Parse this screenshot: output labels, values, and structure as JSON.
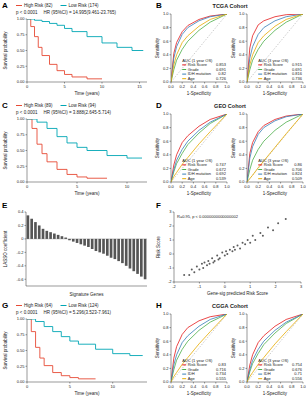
{
  "chart_data": [
    {
      "panel": "A",
      "type": "km",
      "xlabel": "Time (years)",
      "ylabel": "Survival probability",
      "xlim": [
        0,
        16
      ],
      "xticks": [
        0,
        5,
        10,
        15
      ],
      "ylim": [
        0,
        1
      ],
      "yticks": [
        {
          "value": 0,
          "label": "0.00"
        },
        0.25,
        {
          "value": 0.5,
          "label": "0.50"
        },
        0.75,
        {
          "value": 1,
          "label": "1.00"
        }
      ],
      "annotations": [
        "p < 0.0001",
        "HR (95%CI) = 14.995(9.461-23.765)"
      ],
      "series": [
        {
          "name": "High Risk (82)",
          "color": "#e64b35",
          "x": [
            0,
            0.5,
            1,
            1.5,
            2,
            3,
            4,
            5,
            6,
            8,
            10
          ],
          "values": [
            1,
            0.88,
            0.72,
            0.55,
            0.42,
            0.28,
            0.18,
            0.12,
            0.08,
            0.05,
            0.05
          ]
        },
        {
          "name": "Low Risk (174)",
          "color": "#00a6b4",
          "x": [
            0,
            1,
            2,
            3,
            4,
            5,
            6,
            8,
            10,
            12,
            14,
            15.5
          ],
          "values": [
            1,
            0.98,
            0.96,
            0.93,
            0.9,
            0.85,
            0.8,
            0.72,
            0.62,
            0.55,
            0.5,
            0.5
          ]
        }
      ]
    },
    {
      "panel": "B",
      "type": "roc",
      "title": "TCGA Cohort",
      "xlabel": "1-Specificity",
      "ylabel": "Sensitivity",
      "xlim": [
        0,
        1
      ],
      "ylim": [
        0,
        1
      ],
      "xticks": [
        {
          "value": 0,
          "label": "0.0"
        },
        0.2,
        0.4,
        0.6,
        0.8,
        {
          "value": 1,
          "label": "1.0"
        }
      ],
      "yticks": [
        {
          "value": 0,
          "label": "0.0"
        },
        0.2,
        0.4,
        0.6,
        0.8,
        {
          "value": 1,
          "label": "1.0"
        }
      ],
      "subplots": [
        {
          "legend_title": "AUC (1 year OS)",
          "x": [
            0,
            0.05,
            0.1,
            0.2,
            0.3,
            0.5,
            0.7,
            1
          ],
          "series": [
            {
              "name": "Risk Score",
              "auc": 0.853,
              "color": "#e41a1c",
              "values": [
                0,
                0.42,
                0.58,
                0.74,
                0.83,
                0.92,
                0.97,
                1
              ]
            },
            {
              "name": "Grade",
              "auc": 0.691,
              "color": "#4daf4a",
              "values": [
                0,
                0.18,
                0.32,
                0.48,
                0.6,
                0.76,
                0.88,
                1
              ]
            },
            {
              "name": "IDH mutation",
              "auc": 0.82,
              "color": "#377eb8",
              "values": [
                0,
                0.35,
                0.52,
                0.7,
                0.8,
                0.9,
                0.96,
                1
              ]
            },
            {
              "name": "Age",
              "auc": 0.726,
              "color": "#e6ab02",
              "values": [
                0,
                0.25,
                0.4,
                0.58,
                0.68,
                0.82,
                0.92,
                1
              ]
            }
          ]
        },
        {
          "legend_title": "AUC (3 year OS)",
          "x": [
            0,
            0.05,
            0.1,
            0.2,
            0.3,
            0.5,
            0.7,
            1
          ],
          "series": [
            {
              "name": "Risk Score",
              "auc": 0.915,
              "color": "#e41a1c",
              "values": [
                0,
                0.5,
                0.68,
                0.84,
                0.9,
                0.96,
                0.99,
                1
              ]
            },
            {
              "name": "Grade",
              "auc": 0.691,
              "color": "#4daf4a",
              "values": [
                0,
                0.18,
                0.32,
                0.48,
                0.6,
                0.76,
                0.88,
                1
              ]
            },
            {
              "name": "IDH mutation",
              "auc": 0.816,
              "color": "#377eb8",
              "values": [
                0,
                0.35,
                0.52,
                0.7,
                0.8,
                0.9,
                0.96,
                1
              ]
            },
            {
              "name": "Age",
              "auc": 0.736,
              "color": "#e6ab02",
              "values": [
                0,
                0.25,
                0.4,
                0.58,
                0.68,
                0.82,
                0.92,
                1
              ]
            }
          ]
        }
      ]
    },
    {
      "panel": "C",
      "type": "km",
      "xlabel": "Time (years)",
      "ylabel": "Survival probability",
      "xlim": [
        0,
        12
      ],
      "xticks": [
        0,
        5,
        10
      ],
      "ylim": [
        0,
        1
      ],
      "yticks": [
        {
          "value": 0,
          "label": "0.00"
        },
        0.25,
        {
          "value": 0.5,
          "label": "0.50"
        },
        0.75,
        {
          "value": 1,
          "label": "1.00"
        }
      ],
      "annotations": [
        "p < 0.0001",
        "HR (95%CI) = 3.888(2.645-5.714)"
      ],
      "series": [
        {
          "name": "High Risk (89)",
          "color": "#e64b35",
          "x": [
            0,
            0.5,
            1,
            1.5,
            2,
            3,
            4,
            5,
            6,
            8
          ],
          "values": [
            1,
            0.85,
            0.6,
            0.45,
            0.32,
            0.2,
            0.12,
            0.08,
            0.06,
            0.06
          ]
        },
        {
          "name": "Low Risk (94)",
          "color": "#00a6b4",
          "x": [
            0,
            1,
            2,
            3,
            4,
            5,
            6,
            8,
            10,
            11.5
          ],
          "values": [
            1,
            0.95,
            0.85,
            0.72,
            0.62,
            0.55,
            0.5,
            0.42,
            0.38,
            0.38
          ]
        }
      ]
    },
    {
      "panel": "D",
      "type": "roc",
      "title": "GEO Cohort",
      "xlabel": "1-Specificity",
      "ylabel": "Sensitivity",
      "xlim": [
        0,
        1
      ],
      "ylim": [
        0,
        1
      ],
      "xticks": [
        {
          "value": 0,
          "label": "0.0"
        },
        0.2,
        0.4,
        0.6,
        0.8,
        {
          "value": 1,
          "label": "1.0"
        }
      ],
      "yticks": [
        {
          "value": 0,
          "label": "0.0"
        },
        0.2,
        0.4,
        0.6,
        0.8,
        {
          "value": 1,
          "label": "1.0"
        }
      ],
      "subplots": [
        {
          "legend_title": "AUC (1 year OS)",
          "x": [
            0,
            0.05,
            0.1,
            0.2,
            0.3,
            0.5,
            0.7,
            1
          ],
          "series": [
            {
              "name": "Risk Score",
              "auc": 0.747,
              "color": "#e41a1c",
              "values": [
                0,
                0.25,
                0.4,
                0.58,
                0.68,
                0.82,
                0.92,
                1
              ]
            },
            {
              "name": "Grade",
              "auc": 0.672,
              "color": "#4daf4a",
              "values": [
                0,
                0.15,
                0.27,
                0.42,
                0.55,
                0.72,
                0.86,
                1
              ]
            },
            {
              "name": "IDH mutation",
              "auc": 0.692,
              "color": "#377eb8",
              "values": [
                0,
                0.18,
                0.32,
                0.48,
                0.6,
                0.76,
                0.88,
                1
              ]
            },
            {
              "name": "Age",
              "auc": 0.539,
              "color": "#e6ab02",
              "values": [
                0,
                0.08,
                0.14,
                0.26,
                0.36,
                0.56,
                0.74,
                1
              ]
            }
          ]
        },
        {
          "legend_title": "AUC (3 year OS)",
          "x": [
            0,
            0.05,
            0.1,
            0.2,
            0.3,
            0.5,
            0.7,
            1
          ],
          "series": [
            {
              "name": "Risk Score",
              "auc": 0.86,
              "color": "#e41a1c",
              "values": [
                0,
                0.42,
                0.58,
                0.74,
                0.83,
                0.92,
                0.97,
                1
              ]
            },
            {
              "name": "Grade",
              "auc": 0.706,
              "color": "#4daf4a",
              "values": [
                0,
                0.18,
                0.32,
                0.48,
                0.6,
                0.76,
                0.88,
                1
              ]
            },
            {
              "name": "IDH mutation",
              "auc": 0.824,
              "color": "#377eb8",
              "values": [
                0,
                0.35,
                0.52,
                0.7,
                0.8,
                0.9,
                0.96,
                1
              ]
            },
            {
              "name": "Age",
              "auc": 0.509,
              "color": "#e6ab02",
              "values": [
                0,
                0.05,
                0.1,
                0.21,
                0.31,
                0.51,
                0.71,
                1
              ]
            }
          ]
        }
      ]
    },
    {
      "panel": "E",
      "type": "bar",
      "xlabel": "Signature Genes",
      "ylabel": "LASSO coefficient",
      "color": "#555555",
      "ylim": [
        -0.7,
        0.4
      ],
      "yticks": [
        -0.6,
        -0.4,
        -0.2,
        0,
        0.2,
        0.4
      ],
      "categories": [
        null,
        null,
        null,
        null,
        null,
        null,
        null,
        null,
        null,
        null,
        null,
        null,
        null,
        null,
        null,
        null,
        null,
        null,
        null,
        null,
        null,
        null,
        null,
        null,
        null,
        null,
        null,
        null,
        null,
        null,
        null,
        null
      ],
      "values": [
        0.35,
        0.3,
        0.25,
        0.2,
        0.15,
        0.12,
        0.1,
        0.08,
        0.06,
        0.04,
        0.02,
        -0.02,
        -0.04,
        -0.06,
        -0.08,
        -0.1,
        -0.12,
        -0.15,
        -0.18,
        -0.2,
        -0.22,
        -0.25,
        -0.28,
        -0.3,
        -0.33,
        -0.36,
        -0.4,
        -0.44,
        -0.48,
        -0.52,
        -0.56,
        -0.6
      ]
    },
    {
      "panel": "F",
      "type": "scatter",
      "xlabel": "Gene-sig predicted Risk Score",
      "ylabel": "Risk Score",
      "color": "#333333",
      "annotations": [
        "R=0.95, p < 0.0000000000000002"
      ],
      "xlim": [
        -2,
        3
      ],
      "xticks": [
        -2,
        -1,
        0,
        1,
        2,
        3
      ],
      "ylim": [
        -2,
        3
      ],
      "yticks": [
        -2,
        -1,
        0,
        1,
        2,
        3
      ],
      "x": [
        -1.6,
        -1.4,
        -1.3,
        -1.2,
        -1.1,
        -1.0,
        -0.9,
        -0.85,
        -0.8,
        -0.7,
        -0.65,
        -0.6,
        -0.5,
        -0.45,
        -0.4,
        -0.3,
        -0.25,
        -0.2,
        -0.1,
        0,
        0.05,
        0.1,
        0.2,
        0.3,
        0.35,
        0.4,
        0.5,
        0.6,
        0.7,
        0.8,
        0.9,
        1.0,
        1.1,
        1.2,
        1.4,
        1.5,
        1.7,
        1.9,
        2.1,
        2.4
      ],
      "values": [
        -1.5,
        -1.5,
        -1.1,
        -1.3,
        -0.9,
        -1.1,
        -0.7,
        -1.0,
        -0.6,
        -0.8,
        -0.5,
        -0.7,
        -0.3,
        -0.6,
        -0.5,
        -0.1,
        -0.4,
        -0.3,
        0.1,
        -0.1,
        0.2,
        0,
        0.3,
        0.2,
        0.5,
        0.3,
        0.6,
        0.4,
        0.8,
        0.7,
        1.0,
        0.8,
        1.3,
        1.0,
        1.5,
        1.3,
        1.9,
        1.7,
        2.2,
        2.5
      ]
    },
    {
      "panel": "G",
      "type": "km",
      "xlabel": "Time (years)",
      "ylabel": "Survival probability",
      "xlim": [
        0,
        14
      ],
      "xticks": [
        0,
        5,
        10
      ],
      "ylim": [
        0,
        1
      ],
      "yticks": [
        {
          "value": 0,
          "label": "0.00"
        },
        0.25,
        {
          "value": 0.5,
          "label": "0.50"
        },
        0.75,
        {
          "value": 1,
          "label": "1.00"
        }
      ],
      "annotations": [
        "p < 0.0001",
        "HR (95%CI) = 5.296(3.523-7.961)"
      ],
      "series": [
        {
          "name": "High Risk (64)",
          "color": "#e64b35",
          "x": [
            0,
            0.5,
            1,
            1.5,
            2,
            3,
            4,
            5,
            6,
            8
          ],
          "values": [
            1,
            0.8,
            0.55,
            0.38,
            0.26,
            0.15,
            0.1,
            0.07,
            0.05,
            0.05
          ]
        },
        {
          "name": "Low Risk (124)",
          "color": "#00a6b4",
          "x": [
            0,
            1,
            2,
            3,
            4,
            5,
            6,
            8,
            10,
            12,
            13.5
          ],
          "values": [
            1,
            0.96,
            0.88,
            0.8,
            0.72,
            0.65,
            0.6,
            0.52,
            0.45,
            0.42,
            0.42
          ]
        }
      ]
    },
    {
      "panel": "H",
      "type": "roc",
      "title": "CGGA Cohort",
      "xlabel": "1-Specificity",
      "ylabel": "Sensitivity",
      "xlim": [
        0,
        1
      ],
      "ylim": [
        0,
        1
      ],
      "xticks": [
        {
          "value": 0,
          "label": "0.0"
        },
        0.2,
        0.4,
        0.6,
        0.8,
        {
          "value": 1,
          "label": "1.0"
        }
      ],
      "yticks": [
        {
          "value": 0,
          "label": "0.0"
        },
        0.2,
        0.4,
        0.6,
        0.8,
        {
          "value": 1,
          "label": "1.0"
        }
      ],
      "subplots": [
        {
          "legend_title": "AUC (1 year OS)",
          "x": [
            0,
            0.05,
            0.1,
            0.2,
            0.3,
            0.5,
            0.7,
            1
          ],
          "series": [
            {
              "name": "Risk Score",
              "auc": 0.83,
              "color": "#e41a1c",
              "values": [
                0,
                0.35,
                0.52,
                0.7,
                0.8,
                0.9,
                0.96,
                1
              ]
            },
            {
              "name": "Grade",
              "auc": 0.716,
              "color": "#4daf4a",
              "values": [
                0,
                0.18,
                0.32,
                0.48,
                0.6,
                0.76,
                0.88,
                1
              ]
            },
            {
              "name": "IDH",
              "auc": 0.734,
              "color": "#377eb8",
              "values": [
                0,
                0.25,
                0.4,
                0.58,
                0.68,
                0.82,
                0.92,
                1
              ]
            },
            {
              "name": "Age",
              "auc": 0.555,
              "color": "#e6ab02",
              "values": [
                0,
                0.08,
                0.14,
                0.26,
                0.36,
                0.56,
                0.74,
                1
              ]
            }
          ]
        },
        {
          "legend_title": "AUC (3 year OS)",
          "x": [
            0,
            0.05,
            0.1,
            0.2,
            0.3,
            0.5,
            0.7,
            1
          ],
          "series": [
            {
              "name": "Risk Score",
              "auc": 0.754,
              "color": "#e41a1c",
              "values": [
                0,
                0.25,
                0.4,
                0.58,
                0.68,
                0.82,
                0.92,
                1
              ]
            },
            {
              "name": "Grade",
              "auc": 0.676,
              "color": "#4daf4a",
              "values": [
                0,
                0.15,
                0.27,
                0.42,
                0.55,
                0.72,
                0.86,
                1
              ]
            },
            {
              "name": "IDH",
              "auc": 0.71,
              "color": "#377eb8",
              "values": [
                0,
                0.18,
                0.32,
                0.48,
                0.6,
                0.76,
                0.88,
                1
              ]
            },
            {
              "name": "Age",
              "auc": 0.556,
              "color": "#e6ab02",
              "values": [
                0,
                0.08,
                0.14,
                0.26,
                0.36,
                0.56,
                0.74,
                1
              ]
            }
          ]
        }
      ]
    }
  ]
}
